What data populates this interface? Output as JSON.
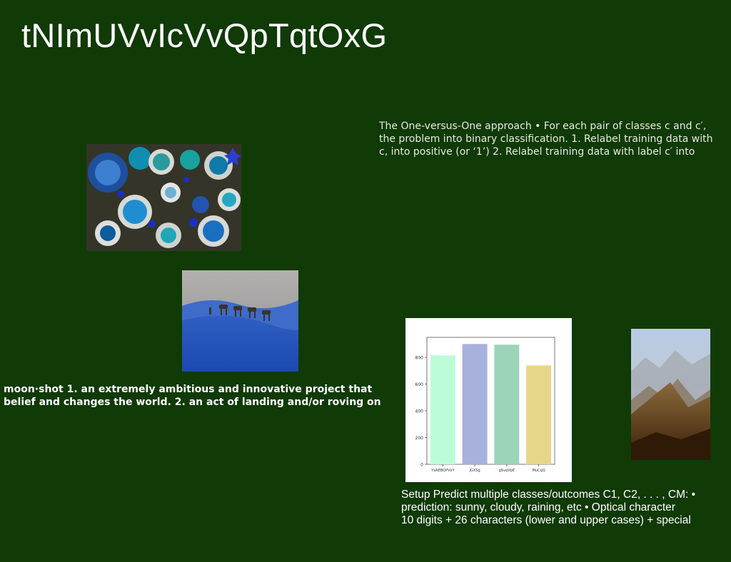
{
  "slide": {
    "title": "tNImUVvIcVvQpTqtOxG",
    "text_ovo": [
      "The One-versus-One approach • For each pair of classes c and c′,",
      "the problem into binary classification. 1. Relabel training data with",
      "c, into positive (or ‘1’) 2. Relabel training data with label c′ into"
    ],
    "text_moonshot": [
      "moon·shot 1. an extremely ambitious and innovative project that",
      "belief and changes the world. 2. an act of landing and/or roving on"
    ],
    "text_setup": [
      "Setup Predict multiple classes/outcomes C1, C2, . . . , CM: •",
      "prediction: sunny, cloudy, raining, etc • Optical character",
      "10 digits + 26 characters (lower and upper cases) + special"
    ]
  },
  "images": {
    "bowls": "photo of blue stones and ceramic bowls",
    "desert": "photo of camel caravan on blue dunes",
    "mountains": "photo of misty brown mountains"
  },
  "chart_data": {
    "type": "bar",
    "categories": [
      "YvAEBQPVxY",
      "jGXSg",
      "gSvqVpE",
      "MuCqQ"
    ],
    "values": [
      815,
      900,
      895,
      740
    ],
    "colors": [
      "#bdfcd9",
      "#a6b1dc",
      "#9bd4b9",
      "#e6d68a"
    ],
    "yticks": [
      0,
      200,
      400,
      600,
      800
    ],
    "ylim": [
      0,
      950
    ],
    "title": "",
    "xlabel": "",
    "ylabel": ""
  }
}
